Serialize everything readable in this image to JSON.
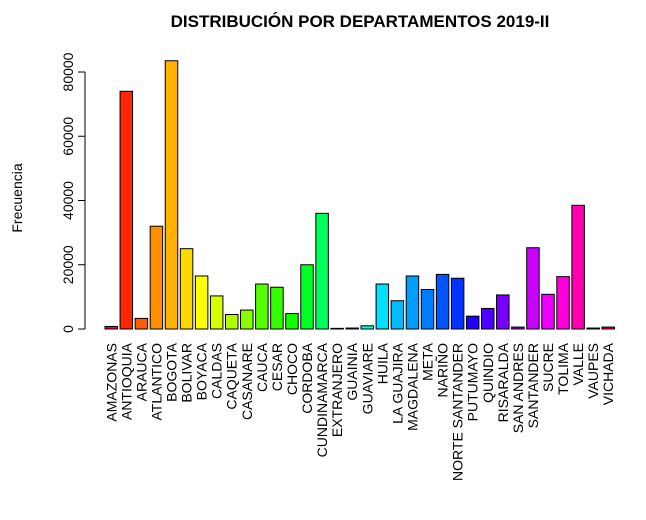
{
  "chart_data": {
    "type": "bar",
    "title": "DISTRIBUCIÓN POR DEPARTAMENTOS 2019-II",
    "xlabel": "",
    "ylabel": "Frecuencia",
    "ylim": [
      0,
      85000
    ],
    "yticks": [
      0,
      20000,
      40000,
      60000,
      80000
    ],
    "grid": false,
    "categories": [
      "AMAZONAS",
      "ANTIOQUIA",
      "ARAUCA",
      "ATLANTICO",
      "BOGOTA",
      "BOLIVAR",
      "BOYACA",
      "CALDAS",
      "CAQUETA",
      "CASANARE",
      "CAUCA",
      "CESAR",
      "CHOCO",
      "CORDOBA",
      "CUNDINAMARCA",
      "EXTRANJERO",
      "GUAINIA",
      "GUAVIARE",
      "HUILA",
      "LA GUAJIRA",
      "MAGDALENA",
      "META",
      "NARIÑO",
      "NORTE SANTANDER",
      "PUTUMAYO",
      "QUINDIO",
      "RISARALDA",
      "SAN ANDRES",
      "SANTANDER",
      "SUCRE",
      "TOLIMA",
      "VALLE",
      "VAUPES",
      "VICHADA"
    ],
    "values": [
      800,
      74000,
      3300,
      32000,
      83500,
      25000,
      16500,
      10300,
      4500,
      5900,
      14000,
      13000,
      4800,
      20000,
      36000,
      200,
      300,
      1000,
      14000,
      8800,
      16500,
      12300,
      17000,
      15800,
      4000,
      6400,
      10600,
      600,
      25300,
      10800,
      16300,
      38500,
      300,
      600
    ],
    "colors": [
      "#FF0029",
      "#FF2600",
      "#FF5E00",
      "#FF8E00",
      "#FFB200",
      "#FFD800",
      "#FFFF00",
      "#D4FF00",
      "#B2FF00",
      "#88FF00",
      "#55FF00",
      "#33FF00",
      "#11FF00",
      "#00FF22",
      "#00FF5A",
      "#00FF88",
      "#00FFB3",
      "#00FFE0",
      "#00E0FF",
      "#00BCFF",
      "#009EFF",
      "#007DFF",
      "#0055FF",
      "#0033FF",
      "#1F00FF",
      "#4D00FF",
      "#7700FF",
      "#9E00FF",
      "#CC00FF",
      "#EE00FF",
      "#FF00DD",
      "#FF00B0",
      "#FF007E",
      "#FF0055"
    ]
  }
}
